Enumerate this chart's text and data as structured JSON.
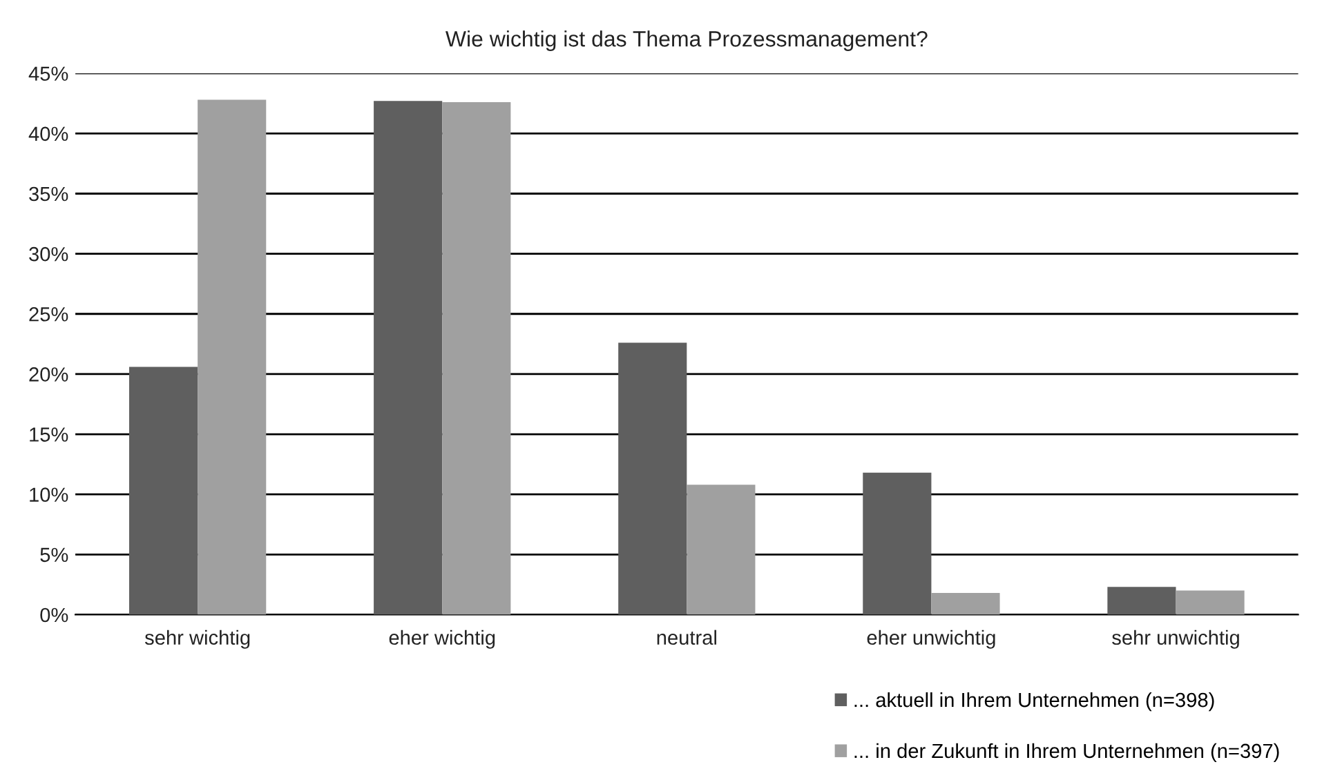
{
  "chart_data": {
    "type": "bar",
    "title": "Wie wichtig ist das Thema Prozessmanagement?",
    "categories": [
      "sehr wichtig",
      "eher wichtig",
      "neutral",
      "eher unwichtig",
      "sehr unwichtig"
    ],
    "series": [
      {
        "name": "... aktuell in Ihrem Unternehmen (n=398)",
        "color": "#5f5f5f",
        "values": [
          20.6,
          42.7,
          22.6,
          11.8,
          2.3
        ]
      },
      {
        "name": "... in der Zukunft in Ihrem Unternehmen (n=397)",
        "color": "#a0a0a0",
        "values": [
          42.8,
          42.6,
          10.8,
          1.8,
          2.0
        ]
      }
    ],
    "ylim": [
      0,
      45
    ],
    "yticks": [
      {
        "value": 0,
        "label": "0%"
      },
      {
        "value": 5,
        "label": "5%"
      },
      {
        "value": 10,
        "label": "10%"
      },
      {
        "value": 15,
        "label": "15%"
      },
      {
        "value": 20,
        "label": "20%"
      },
      {
        "value": 25,
        "label": "25%"
      },
      {
        "value": 30,
        "label": "30%"
      },
      {
        "value": 35,
        "label": "35%"
      },
      {
        "value": 40,
        "label": "40%"
      },
      {
        "value": 45,
        "label": "45%"
      }
    ],
    "grid": "y",
    "legend": "bottom right"
  }
}
